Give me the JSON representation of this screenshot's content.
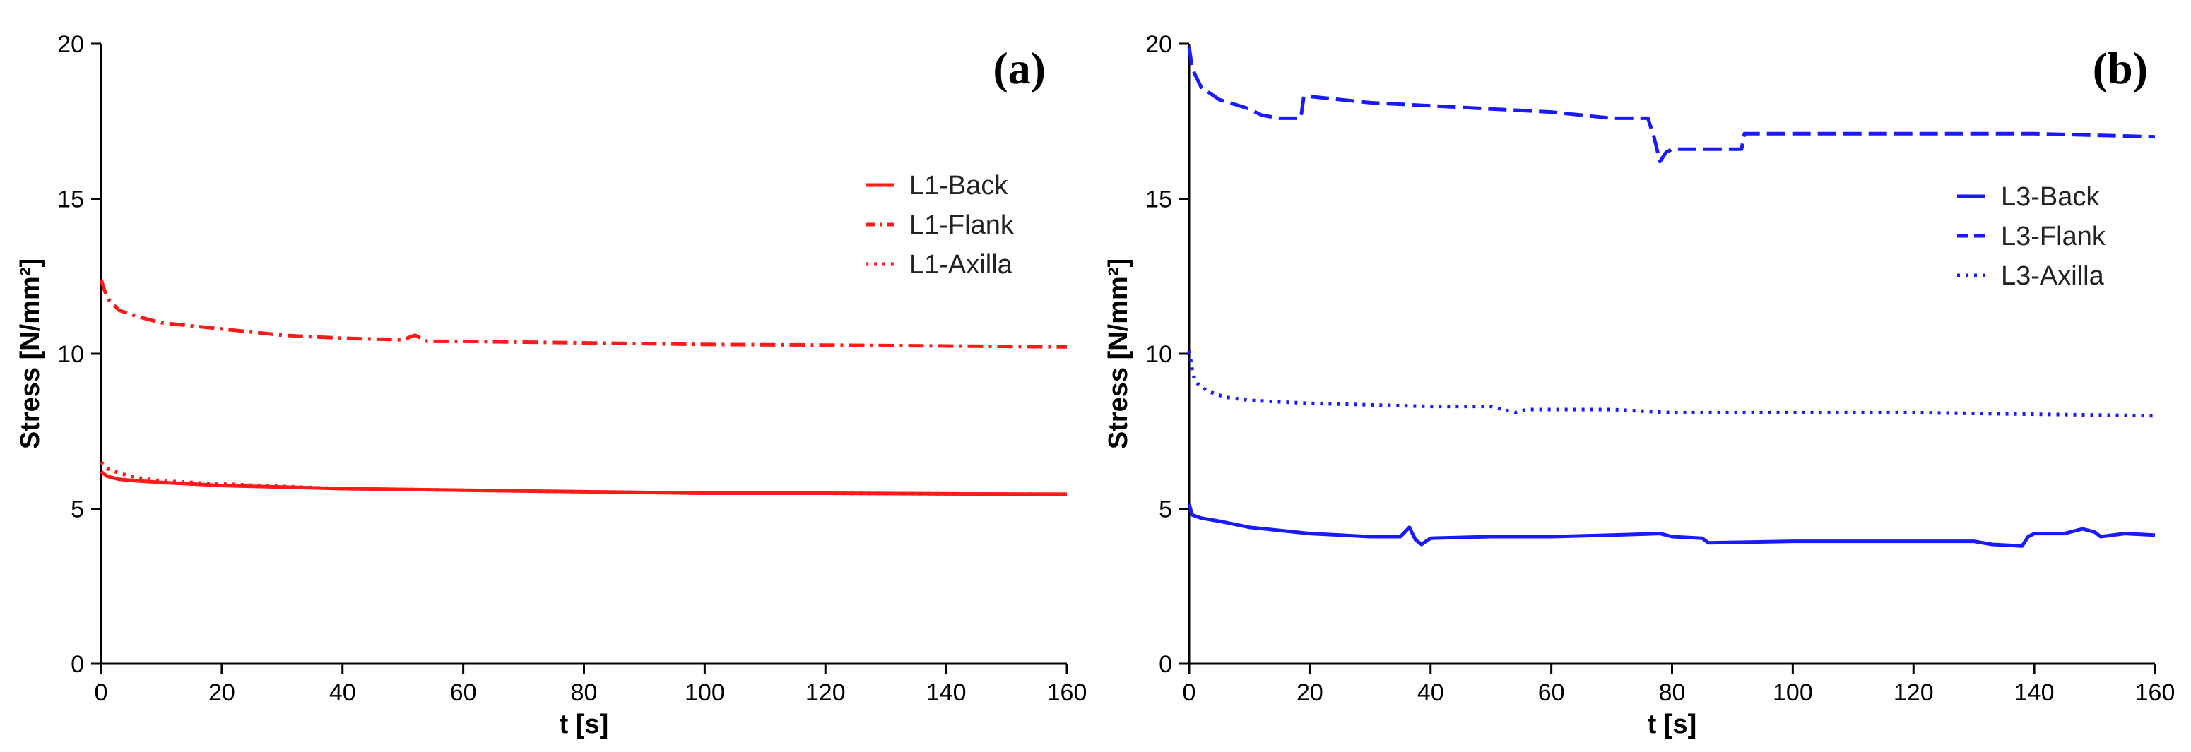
{
  "chart_data": [
    {
      "type": "line",
      "panel_label": "(a)",
      "xlabel": "t [s]",
      "ylabel": "Stress [N/mm²]",
      "xlim": [
        0,
        160
      ],
      "ylim": [
        0,
        20
      ],
      "x_ticks": [
        "0",
        "20",
        "40",
        "60",
        "80",
        "100",
        "120",
        "140",
        "160"
      ],
      "y_ticks": [
        "0",
        "5",
        "10",
        "15",
        "20"
      ],
      "legend_position": "top-right",
      "color": "#ff1a1a",
      "series": [
        {
          "name": "L1-Back",
          "style": "solid",
          "x": [
            0,
            1,
            3,
            6,
            10,
            20,
            30,
            40,
            60,
            80,
            100,
            120,
            140,
            160
          ],
          "values": [
            6.2,
            6.05,
            5.95,
            5.9,
            5.85,
            5.75,
            5.7,
            5.65,
            5.6,
            5.55,
            5.5,
            5.5,
            5.48,
            5.47
          ]
        },
        {
          "name": "L1-Flank",
          "style": "dashdot",
          "x": [
            0,
            1,
            3,
            6,
            10,
            20,
            30,
            40,
            50,
            52,
            54,
            60,
            80,
            100,
            120,
            140,
            160
          ],
          "values": [
            12.4,
            11.8,
            11.4,
            11.2,
            11.0,
            10.8,
            10.6,
            10.5,
            10.45,
            10.6,
            10.4,
            10.4,
            10.35,
            10.3,
            10.28,
            10.25,
            10.22
          ]
        },
        {
          "name": "L1-Axilla",
          "style": "dotted",
          "x": [
            0,
            1,
            3,
            6,
            10,
            20,
            30,
            40,
            60,
            80,
            100,
            120,
            140,
            160
          ],
          "values": [
            6.5,
            6.3,
            6.15,
            6.0,
            5.9,
            5.8,
            5.72,
            5.65,
            5.6,
            5.55,
            5.5,
            5.5,
            5.48,
            5.47
          ]
        }
      ]
    },
    {
      "type": "line",
      "panel_label": "(b)",
      "xlabel": "t [s]",
      "ylabel": "Stress [N/mm²]",
      "xlim": [
        0,
        160
      ],
      "ylim": [
        0,
        20
      ],
      "x_ticks": [
        "0",
        "20",
        "40",
        "60",
        "80",
        "100",
        "120",
        "140",
        "160"
      ],
      "y_ticks": [
        "0",
        "5",
        "10",
        "15",
        "20"
      ],
      "legend_position": "top-right",
      "color": "#1a1aff",
      "series": [
        {
          "name": "L3-Back",
          "style": "solid",
          "x": [
            0,
            0.5,
            2,
            5,
            10,
            20,
            25,
            30,
            35,
            36.5,
            37.5,
            38.5,
            40,
            50,
            60,
            70,
            78,
            80,
            85,
            86,
            100,
            120,
            130,
            133,
            138,
            139,
            140,
            145,
            148,
            150,
            151,
            155,
            160
          ],
          "values": [
            5.15,
            4.8,
            4.7,
            4.6,
            4.4,
            4.2,
            4.15,
            4.1,
            4.1,
            4.4,
            4.0,
            3.85,
            4.05,
            4.1,
            4.1,
            4.15,
            4.2,
            4.1,
            4.05,
            3.9,
            3.95,
            3.95,
            3.95,
            3.85,
            3.8,
            4.1,
            4.2,
            4.2,
            4.35,
            4.25,
            4.1,
            4.2,
            4.15
          ]
        },
        {
          "name": "L3-Flank",
          "style": "dashed",
          "x": [
            0,
            0.5,
            2,
            5,
            10,
            12,
            15,
            18.5,
            19,
            20,
            30,
            40,
            50,
            60,
            70,
            76,
            77,
            78,
            79,
            80,
            85,
            91.5,
            92,
            95,
            100,
            120,
            140,
            160
          ],
          "values": [
            19.9,
            19.2,
            18.6,
            18.2,
            17.9,
            17.7,
            17.6,
            17.6,
            18.3,
            18.3,
            18.1,
            18.0,
            17.9,
            17.8,
            17.6,
            17.6,
            17.0,
            16.2,
            16.5,
            16.6,
            16.6,
            16.6,
            17.1,
            17.1,
            17.1,
            17.1,
            17.1,
            17.0
          ]
        },
        {
          "name": "L3-Axilla",
          "style": "dotted",
          "x": [
            0,
            0.5,
            1,
            3,
            6,
            10,
            20,
            30,
            40,
            50,
            54,
            56,
            60,
            70,
            80,
            100,
            120,
            140,
            160
          ],
          "values": [
            10.1,
            9.5,
            9.1,
            8.8,
            8.6,
            8.5,
            8.4,
            8.35,
            8.3,
            8.3,
            8.1,
            8.2,
            8.2,
            8.2,
            8.1,
            8.1,
            8.1,
            8.05,
            8.0
          ]
        }
      ]
    }
  ]
}
